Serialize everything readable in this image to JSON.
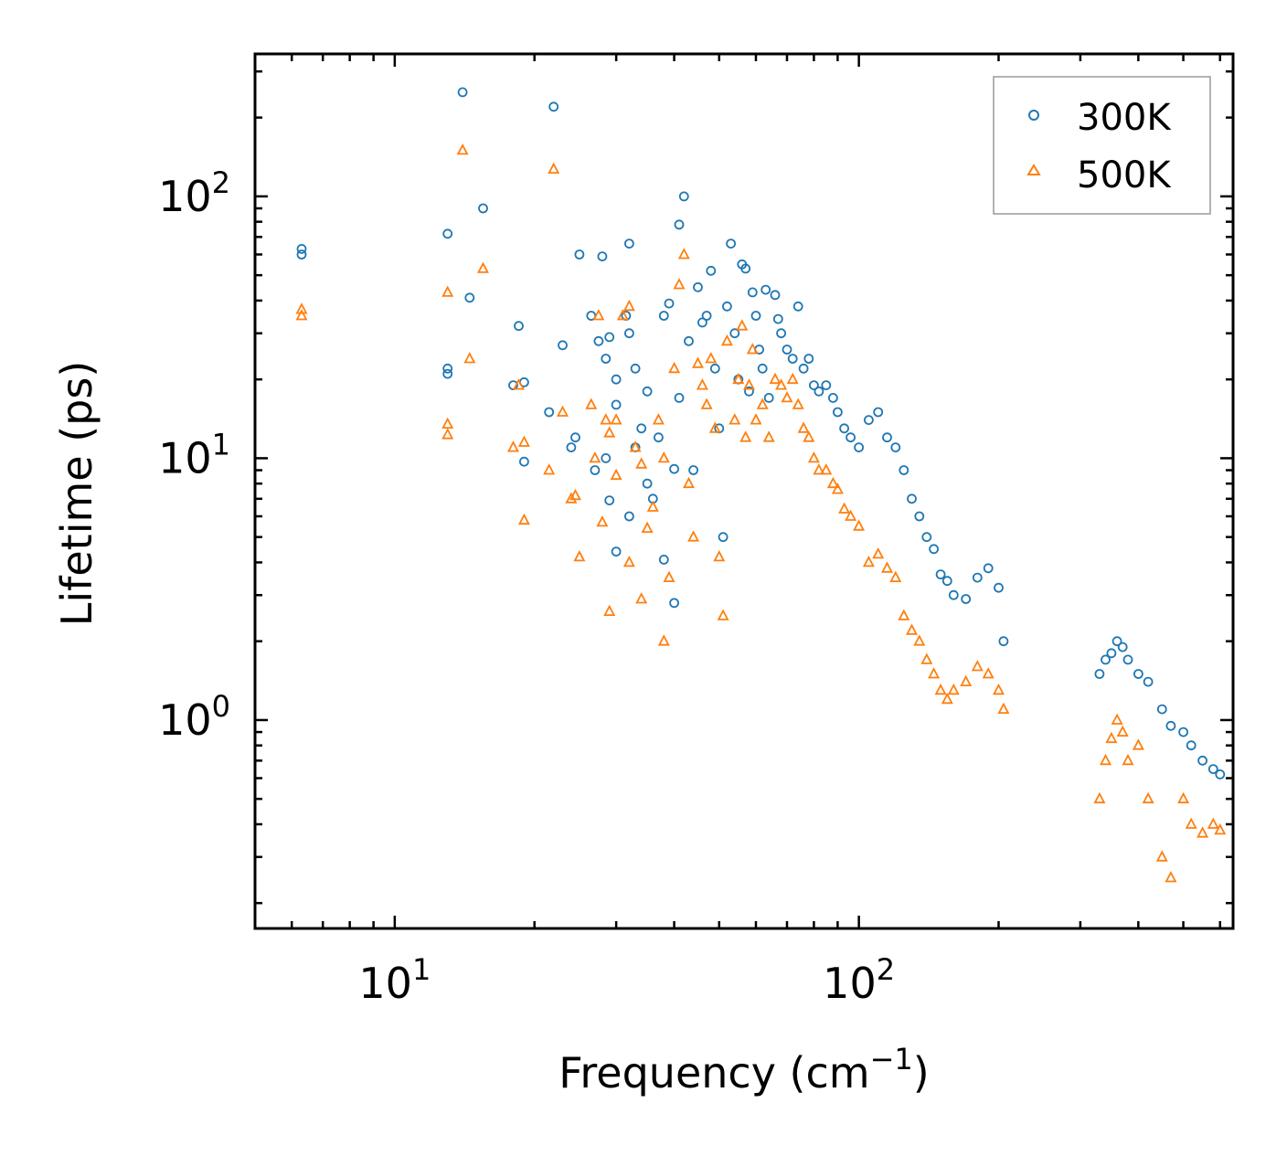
{
  "chart_data": {
    "type": "scatter",
    "xscale": "log",
    "yscale": "log",
    "xlim": [
      5,
      640
    ],
    "ylim": [
      0.16,
      350
    ],
    "xlabel": {
      "text": "Frequency (cm",
      "sup": "−1",
      "close": ")"
    },
    "ylabel": "Lifetime (ps)",
    "xticks": [
      {
        "value": 10,
        "base": "10",
        "exp": "1"
      },
      {
        "value": 100,
        "base": "10",
        "exp": "2"
      }
    ],
    "yticks": [
      {
        "value": 1,
        "base": "10",
        "exp": "0"
      },
      {
        "value": 10,
        "base": "10",
        "exp": "1"
      },
      {
        "value": 100,
        "base": "10",
        "exp": "2"
      }
    ],
    "legend": {
      "position": "top-right"
    },
    "series": [
      {
        "name": "300K",
        "marker": "circle",
        "color": "#1f77b4",
        "points": [
          [
            6.3,
            60
          ],
          [
            6.3,
            63
          ],
          [
            13,
            72
          ],
          [
            13,
            22
          ],
          [
            13,
            21
          ],
          [
            14,
            250
          ],
          [
            14.5,
            41
          ],
          [
            15.5,
            90
          ],
          [
            18.5,
            32
          ],
          [
            18,
            19
          ],
          [
            19,
            19.5
          ],
          [
            19,
            9.7
          ],
          [
            21.5,
            15
          ],
          [
            22,
            220
          ],
          [
            23,
            27
          ],
          [
            24,
            11
          ],
          [
            24.5,
            12
          ],
          [
            25,
            60
          ],
          [
            26.5,
            35
          ],
          [
            27,
            9
          ],
          [
            27.5,
            28
          ],
          [
            28,
            59
          ],
          [
            28.5,
            24
          ],
          [
            28.5,
            10
          ],
          [
            29,
            29
          ],
          [
            29,
            6.9
          ],
          [
            30,
            20
          ],
          [
            30,
            4.4
          ],
          [
            30,
            16
          ],
          [
            31.5,
            35
          ],
          [
            32,
            6
          ],
          [
            32,
            30
          ],
          [
            32,
            66
          ],
          [
            33,
            22
          ],
          [
            33,
            11
          ],
          [
            34,
            13
          ],
          [
            35,
            18
          ],
          [
            35,
            8
          ],
          [
            36,
            7
          ],
          [
            37,
            12
          ],
          [
            38,
            35
          ],
          [
            38,
            4.1
          ],
          [
            39,
            39
          ],
          [
            40,
            9.1
          ],
          [
            40,
            2.8
          ],
          [
            41,
            17
          ],
          [
            41,
            78
          ],
          [
            42,
            100
          ],
          [
            43,
            28
          ],
          [
            44,
            9
          ],
          [
            45,
            45
          ],
          [
            46,
            33
          ],
          [
            47,
            35
          ],
          [
            48,
            52
          ],
          [
            49,
            22
          ],
          [
            50,
            13
          ],
          [
            51,
            5
          ],
          [
            52,
            38
          ],
          [
            53,
            66
          ],
          [
            54,
            30
          ],
          [
            55,
            20
          ],
          [
            56,
            55
          ],
          [
            57,
            53
          ],
          [
            58,
            18
          ],
          [
            59,
            43
          ],
          [
            60,
            35
          ],
          [
            61,
            26
          ],
          [
            62,
            22
          ],
          [
            63,
            44
          ],
          [
            64,
            17
          ],
          [
            66,
            42
          ],
          [
            67,
            34
          ],
          [
            68,
            30
          ],
          [
            70,
            26
          ],
          [
            72,
            24
          ],
          [
            74,
            38
          ],
          [
            76,
            22
          ],
          [
            78,
            24
          ],
          [
            80,
            19
          ],
          [
            82,
            18
          ],
          [
            85,
            19
          ],
          [
            88,
            17
          ],
          [
            90,
            15
          ],
          [
            93,
            13
          ],
          [
            96,
            12
          ],
          [
            100,
            11
          ],
          [
            105,
            14
          ],
          [
            110,
            15
          ],
          [
            115,
            12
          ],
          [
            120,
            11
          ],
          [
            125,
            9
          ],
          [
            130,
            7
          ],
          [
            135,
            6
          ],
          [
            140,
            5
          ],
          [
            145,
            4.5
          ],
          [
            150,
            3.6
          ],
          [
            155,
            3.4
          ],
          [
            160,
            3.0
          ],
          [
            170,
            2.9
          ],
          [
            180,
            3.5
          ],
          [
            190,
            3.8
          ],
          [
            200,
            3.2
          ],
          [
            205,
            2.0
          ],
          [
            330,
            1.5
          ],
          [
            340,
            1.7
          ],
          [
            350,
            1.8
          ],
          [
            360,
            2.0
          ],
          [
            370,
            1.9
          ],
          [
            380,
            1.7
          ],
          [
            400,
            1.5
          ],
          [
            420,
            1.4
          ],
          [
            450,
            1.1
          ],
          [
            470,
            0.95
          ],
          [
            500,
            0.9
          ],
          [
            520,
            0.8
          ],
          [
            550,
            0.7
          ],
          [
            580,
            0.65
          ],
          [
            600,
            0.62
          ]
        ]
      },
      {
        "name": "500K",
        "marker": "triangle",
        "color": "#ff7f0e",
        "points": [
          [
            6.3,
            37
          ],
          [
            6.3,
            35
          ],
          [
            13,
            43
          ],
          [
            13,
            13.5
          ],
          [
            13,
            12.3
          ],
          [
            14,
            150
          ],
          [
            14.5,
            24
          ],
          [
            15.5,
            53
          ],
          [
            18,
            11
          ],
          [
            18.5,
            19
          ],
          [
            19,
            11.5
          ],
          [
            19,
            5.8
          ],
          [
            21.5,
            9
          ],
          [
            22,
            127
          ],
          [
            23,
            15
          ],
          [
            24,
            7
          ],
          [
            24.5,
            7.2
          ],
          [
            25,
            4.2
          ],
          [
            26.5,
            16
          ],
          [
            27,
            10
          ],
          [
            27.5,
            35
          ],
          [
            28,
            5.7
          ],
          [
            28.5,
            14
          ],
          [
            29,
            12.5
          ],
          [
            29,
            2.6
          ],
          [
            30,
            14
          ],
          [
            30,
            8.6
          ],
          [
            31,
            35
          ],
          [
            32,
            38
          ],
          [
            32,
            4
          ],
          [
            33,
            11
          ],
          [
            34,
            9.5
          ],
          [
            34,
            2.9
          ],
          [
            35,
            5.4
          ],
          [
            36,
            6.5
          ],
          [
            37,
            14
          ],
          [
            38,
            10
          ],
          [
            38,
            2
          ],
          [
            39,
            3.5
          ],
          [
            40,
            22
          ],
          [
            41,
            46
          ],
          [
            42,
            60
          ],
          [
            43,
            8
          ],
          [
            44,
            5
          ],
          [
            45,
            23
          ],
          [
            46,
            19
          ],
          [
            47,
            16
          ],
          [
            48,
            24
          ],
          [
            49,
            13
          ],
          [
            50,
            4.2
          ],
          [
            51,
            2.5
          ],
          [
            52,
            28
          ],
          [
            54,
            14
          ],
          [
            55,
            20
          ],
          [
            56,
            32
          ],
          [
            57,
            12
          ],
          [
            58,
            19
          ],
          [
            59,
            26
          ],
          [
            60,
            14
          ],
          [
            62,
            16
          ],
          [
            64,
            12
          ],
          [
            66,
            20
          ],
          [
            68,
            19
          ],
          [
            70,
            17
          ],
          [
            72,
            20
          ],
          [
            74,
            16
          ],
          [
            76,
            13
          ],
          [
            78,
            12
          ],
          [
            80,
            10
          ],
          [
            82,
            9
          ],
          [
            85,
            9
          ],
          [
            88,
            8
          ],
          [
            90,
            7.6
          ],
          [
            93,
            6.4
          ],
          [
            96,
            6
          ],
          [
            100,
            5.5
          ],
          [
            105,
            4
          ],
          [
            110,
            4.3
          ],
          [
            115,
            3.8
          ],
          [
            120,
            3.5
          ],
          [
            125,
            2.5
          ],
          [
            130,
            2.2
          ],
          [
            135,
            2
          ],
          [
            140,
            1.7
          ],
          [
            145,
            1.5
          ],
          [
            150,
            1.3
          ],
          [
            155,
            1.2
          ],
          [
            160,
            1.3
          ],
          [
            170,
            1.4
          ],
          [
            180,
            1.6
          ],
          [
            190,
            1.5
          ],
          [
            200,
            1.3
          ],
          [
            205,
            1.1
          ],
          [
            330,
            0.5
          ],
          [
            340,
            0.7
          ],
          [
            350,
            0.85
          ],
          [
            360,
            1.0
          ],
          [
            370,
            0.9
          ],
          [
            380,
            0.7
          ],
          [
            400,
            0.8
          ],
          [
            420,
            0.5
          ],
          [
            450,
            0.3
          ],
          [
            470,
            0.25
          ],
          [
            500,
            0.5
          ],
          [
            520,
            0.4
          ],
          [
            550,
            0.37
          ],
          [
            580,
            0.4
          ],
          [
            600,
            0.38
          ]
        ]
      }
    ]
  }
}
